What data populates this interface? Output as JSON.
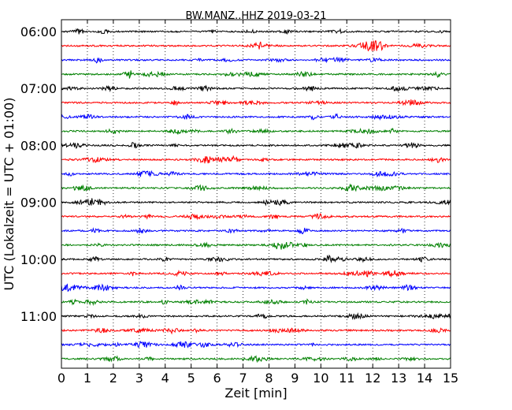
{
  "chart_data": {
    "type": "line",
    "title": "BW.MANZ..HHZ 2019-03-21",
    "xlabel": "Zeit  [min]",
    "ylabel": "UTC (Lokalzeit = UTC + 01:00)",
    "xlim": [
      0,
      15
    ],
    "x_ticks": [
      "0",
      "1",
      "2",
      "3",
      "4",
      "5",
      "6",
      "7",
      "8",
      "9",
      "10",
      "11",
      "12",
      "13",
      "14",
      "15"
    ],
    "y_ticks": [
      "06:00",
      "07:00",
      "08:00",
      "09:00",
      "10:00",
      "11:00"
    ],
    "trace_interval_minutes": 15,
    "grid": "vertical dotted lines at each minute",
    "trace_colors": [
      "#000000",
      "#ff0000",
      "#0000ff",
      "#008000"
    ],
    "series": [
      {
        "start": "06:00",
        "color": "#000000"
      },
      {
        "start": "06:15",
        "color": "#ff0000"
      },
      {
        "start": "06:30",
        "color": "#0000ff"
      },
      {
        "start": "06:45",
        "color": "#008000"
      },
      {
        "start": "07:00",
        "color": "#000000"
      },
      {
        "start": "07:15",
        "color": "#ff0000"
      },
      {
        "start": "07:30",
        "color": "#0000ff"
      },
      {
        "start": "07:45",
        "color": "#008000"
      },
      {
        "start": "08:00",
        "color": "#000000"
      },
      {
        "start": "08:15",
        "color": "#ff0000"
      },
      {
        "start": "08:30",
        "color": "#0000ff"
      },
      {
        "start": "08:45",
        "color": "#008000"
      },
      {
        "start": "09:00",
        "color": "#000000"
      },
      {
        "start": "09:15",
        "color": "#ff0000"
      },
      {
        "start": "09:30",
        "color": "#0000ff"
      },
      {
        "start": "09:45",
        "color": "#008000"
      },
      {
        "start": "10:00",
        "color": "#000000"
      },
      {
        "start": "10:15",
        "color": "#ff0000"
      },
      {
        "start": "10:30",
        "color": "#0000ff"
      },
      {
        "start": "10:45",
        "color": "#008000"
      },
      {
        "start": "11:00",
        "color": "#000000"
      },
      {
        "start": "11:15",
        "color": "#ff0000"
      },
      {
        "start": "11:30",
        "color": "#0000ff"
      },
      {
        "start": "11:45",
        "color": "#008000"
      }
    ]
  }
}
